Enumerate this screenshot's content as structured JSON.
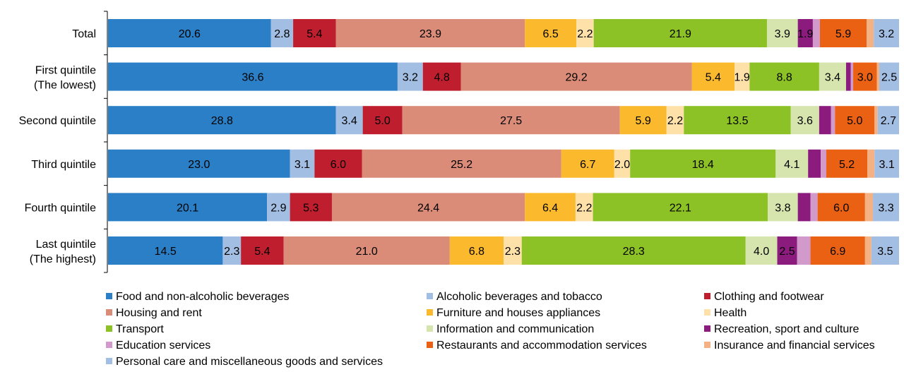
{
  "chart_data": {
    "type": "bar",
    "orientation": "horizontal",
    "stacked": true,
    "normalized_100_percent": true,
    "categories": [
      "Total",
      "First quintile\n(The lowest)",
      "Second quintile",
      "Third quintile",
      "Fourth quintile",
      "Last quintile\n(The highest)"
    ],
    "series": [
      {
        "name": "Food and non-alcoholic beverages",
        "color": "#2A7FC6",
        "values": [
          20.6,
          36.6,
          28.8,
          23.0,
          20.1,
          14.5
        ],
        "labels": [
          "20.6",
          "36.6",
          "28.8",
          "23.0",
          "20.1",
          "14.5"
        ]
      },
      {
        "name": "Alcoholic beverages and tobacco",
        "color": "#A3BEE3",
        "values": [
          2.8,
          3.2,
          3.4,
          3.1,
          2.9,
          2.3
        ],
        "labels": [
          "2.8",
          "3.2",
          "3.4",
          "3.1",
          "2.9",
          "2.3"
        ]
      },
      {
        "name": "Clothing and footwear",
        "color": "#BE1E2D",
        "values": [
          5.4,
          4.8,
          5.0,
          6.0,
          5.3,
          5.4
        ],
        "labels": [
          "5.4",
          "4.8",
          "5.0",
          "6.0",
          "5.3",
          "5.4"
        ]
      },
      {
        "name": "Housing and rent",
        "color": "#DA8C78",
        "values": [
          23.9,
          29.2,
          27.5,
          25.2,
          24.4,
          21.0
        ],
        "labels": [
          "23.9",
          "29.2",
          "27.5",
          "25.2",
          "24.4",
          "21.0"
        ]
      },
      {
        "name": "Furniture and houses appliances",
        "color": "#FBB92D",
        "values": [
          6.5,
          5.4,
          5.9,
          6.7,
          6.4,
          6.8
        ],
        "labels": [
          "6.5",
          "5.4",
          "5.9",
          "6.7",
          "6.4",
          "6.8"
        ]
      },
      {
        "name": "Health",
        "color": "#FDE1A8",
        "values": [
          2.2,
          1.9,
          2.2,
          2.0,
          2.2,
          2.3
        ],
        "labels": [
          "2.2",
          "1.9",
          "2.2",
          "2.0",
          "2.2",
          "2.3"
        ]
      },
      {
        "name": "Transport",
        "color": "#8CC225",
        "values": [
          21.9,
          8.8,
          13.5,
          18.4,
          22.1,
          28.3
        ],
        "labels": [
          "21.9",
          "8.8",
          "13.5",
          "18.4",
          "22.1",
          "28.3"
        ]
      },
      {
        "name": "Information and communication",
        "color": "#D6E5AE",
        "values": [
          3.9,
          3.4,
          3.6,
          4.1,
          3.8,
          4.0
        ],
        "labels": [
          "3.9",
          "3.4",
          "3.6",
          "4.1",
          "3.8",
          "4.0"
        ]
      },
      {
        "name": "Recreation, sport and culture",
        "color": "#8B1C7E",
        "values": [
          1.9,
          0.6,
          1.5,
          1.6,
          1.6,
          2.5
        ],
        "labels": [
          "1.9",
          "",
          "",
          "",
          "",
          "2.5"
        ]
      },
      {
        "name": "Education services",
        "color": "#D29ACB",
        "values": [
          0.9,
          0.3,
          0.5,
          0.7,
          0.9,
          1.7
        ],
        "labels": [
          "",
          "",
          "",
          "",
          "",
          ""
        ]
      },
      {
        "name": "Restaurants and accommodation services",
        "color": "#EA6114",
        "values": [
          5.9,
          3.0,
          5.0,
          5.2,
          6.0,
          6.9
        ],
        "labels": [
          "5.9",
          "3.0",
          "5.0",
          "5.2",
          "6.0",
          "6.9"
        ]
      },
      {
        "name": "Insurance and financial services",
        "color": "#F4B184",
        "values": [
          0.9,
          0.3,
          0.4,
          0.9,
          1.0,
          0.8
        ],
        "labels": [
          "",
          "",
          "",
          "",
          "",
          ""
        ]
      },
      {
        "name": "Personal care and miscellaneous goods and services",
        "color": "#A3BEE3",
        "values": [
          3.2,
          2.5,
          2.7,
          3.1,
          3.3,
          3.5
        ],
        "labels": [
          "3.2",
          "2.5",
          "2.7",
          "3.1",
          "3.3",
          "3.5"
        ]
      }
    ],
    "xlim": [
      0,
      100
    ],
    "grid": false,
    "legend_position": "bottom",
    "title": "",
    "xlabel": "",
    "ylabel": ""
  }
}
